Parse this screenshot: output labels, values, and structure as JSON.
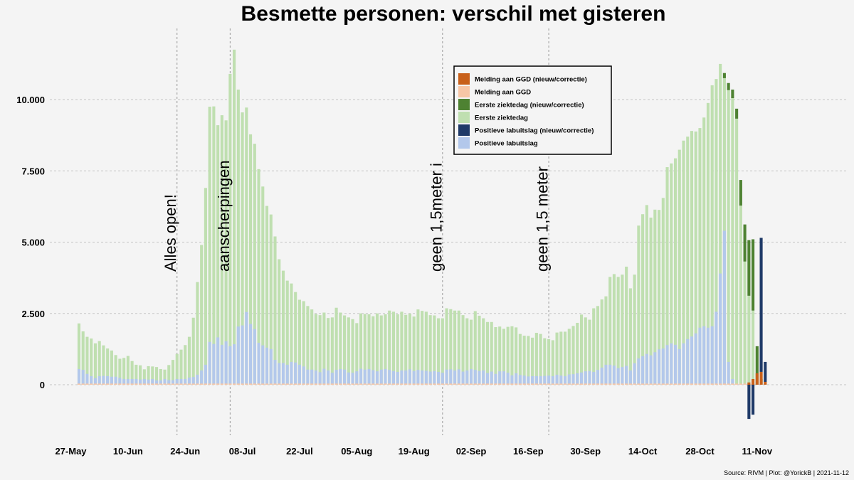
{
  "chart_data": {
    "type": "bar",
    "stacked": true,
    "title": "Besmette personen: verschil met gisteren",
    "source": "Source: RIVM | Plot: @YorickB |  2021-11-12",
    "ylim": [
      -1800,
      12300
    ],
    "y_ticks": [
      0,
      2500,
      5000,
      7500,
      10000
    ],
    "y_tick_labels": [
      "0",
      "2.500",
      "5.000",
      "7.500",
      "10.000"
    ],
    "grid": true,
    "x_ticks": [
      {
        "day": 0,
        "label": "27-May"
      },
      {
        "day": 14,
        "label": "10-Jun"
      },
      {
        "day": 28,
        "label": "24-Jun"
      },
      {
        "day": 42,
        "label": "08-Jul"
      },
      {
        "day": 56,
        "label": "22-Jul"
      },
      {
        "day": 70,
        "label": "05-Aug"
      },
      {
        "day": 84,
        "label": "19-Aug"
      },
      {
        "day": 98,
        "label": "02-Sep"
      },
      {
        "day": 112,
        "label": "16-Sep"
      },
      {
        "day": 126,
        "label": "30-Sep"
      },
      {
        "day": 140,
        "label": "14-Oct"
      },
      {
        "day": 154,
        "label": "28-Oct"
      },
      {
        "day": 168,
        "label": "11-Nov"
      }
    ],
    "annotations": [
      {
        "day": 26,
        "label": "Alles open!"
      },
      {
        "day": 39,
        "label": "aanscherpingen"
      },
      {
        "day": 91,
        "label": "geen 1,5meter i"
      },
      {
        "day": 117,
        "label": "geen 1,5 meter"
      }
    ],
    "legend_position": "top-center",
    "series": [
      {
        "key": "melding_corr",
        "name": "Melding aan GGD (nieuw/correctie)",
        "color": "#c8601a"
      },
      {
        "key": "melding",
        "name": "Melding aan GGD",
        "color": "#f7c6a6"
      },
      {
        "key": "eerste_corr",
        "name": "Eerste ziektedag (nieuw/correctie)",
        "color": "#4e8232"
      },
      {
        "key": "eerste",
        "name": "Eerste ziektedag",
        "color": "#bfdfb0"
      },
      {
        "key": "positief_corr",
        "name": "Positieve labuitslag (nieuw/correctie)",
        "color": "#1f3a68"
      },
      {
        "key": "positief",
        "name": "Positieve labuitslag",
        "color": "#b3c8eb"
      }
    ],
    "start_day": 2,
    "eerste_totals": [
      2150,
      1870,
      1680,
      1620,
      1450,
      1530,
      1380,
      1270,
      1200,
      1040,
      910,
      940,
      1010,
      830,
      700,
      680,
      540,
      650,
      640,
      620,
      550,
      530,
      690,
      870,
      1080,
      1230,
      1390,
      1680,
      2350,
      3600,
      4900,
      6900,
      9750,
      9760,
      9100,
      9450,
      9270,
      10900,
      11750,
      10350,
      9550,
      9720,
      8780,
      8450,
      7560,
      6950,
      6270,
      5970,
      5200,
      4400,
      4000,
      3650,
      3550,
      3250,
      2980,
      2930,
      2760,
      2640,
      2480,
      2440,
      2530,
      2340,
      2360,
      2700,
      2530,
      2430,
      2360,
      2300,
      2160,
      2500,
      2480,
      2470,
      2400,
      2500,
      2430,
      2470,
      2600,
      2560,
      2470,
      2560,
      2450,
      2490,
      2390,
      2640,
      2590,
      2560,
      2440,
      2430,
      2330,
      2330,
      2680,
      2650,
      2600,
      2600,
      2440,
      2330,
      2280,
      2580,
      2420,
      2330,
      2200,
      2200,
      2020,
      2040,
      1960,
      2030,
      2050,
      2010,
      1780,
      1720,
      1710,
      1650,
      1820,
      1780,
      1630,
      1600,
      1560,
      1830,
      1860,
      1860,
      1960,
      2060,
      2170,
      2460,
      2360,
      2280,
      2680,
      2760,
      2990,
      3100,
      3780,
      3880,
      3780,
      3860,
      4140,
      3380,
      3860,
      5580,
      5980,
      6300,
      5860,
      6140,
      6130,
      6550,
      7630,
      7760,
      7940,
      8240,
      8560,
      8700,
      8900,
      8880,
      9000,
      9370,
      9880,
      10500,
      10720,
      11250,
      10750,
      10330,
      10050,
      9330,
      6280,
      4320,
      3120,
      2600
    ],
    "positief_totals": [
      550,
      520,
      380,
      300,
      230,
      300,
      310,
      300,
      280,
      280,
      240,
      200,
      200,
      200,
      200,
      180,
      200,
      180,
      200,
      150,
      150,
      200,
      160,
      160,
      200,
      200,
      200,
      250,
      270,
      350,
      500,
      700,
      1500,
      1430,
      1660,
      1400,
      1520,
      1350,
      1420,
      2040,
      2080,
      2550,
      2130,
      1950,
      1470,
      1380,
      1300,
      1250,
      870,
      760,
      760,
      700,
      800,
      780,
      700,
      640,
      530,
      530,
      500,
      440,
      560,
      500,
      420,
      520,
      550,
      530,
      430,
      420,
      470,
      560,
      530,
      550,
      510,
      470,
      530,
      550,
      520,
      480,
      450,
      500,
      500,
      540,
      480,
      520,
      500,
      490,
      460,
      480,
      450,
      420,
      530,
      540,
      500,
      540,
      460,
      500,
      550,
      520,
      480,
      500,
      410,
      460,
      380,
      470,
      470,
      420,
      330,
      400,
      340,
      320,
      290,
      300,
      300,
      300,
      310,
      320,
      300,
      350,
      320,
      300,
      360,
      370,
      400,
      430,
      470,
      480,
      450,
      520,
      600,
      700,
      700,
      670,
      580,
      620,
      660,
      500,
      750,
      920,
      1000,
      1080,
      1030,
      1140,
      1240,
      1270,
      1390,
      1450,
      1400,
      1250,
      1450,
      1600,
      1690,
      1800,
      2000,
      2050,
      2000,
      2050,
      2560,
      3900,
      5400,
      800,
      200
    ],
    "corrections": [
      {
        "day": 160,
        "eerste_corr": 180
      },
      {
        "day": 161,
        "eerste_corr": 250
      },
      {
        "day": 162,
        "eerste_corr": 300
      },
      {
        "day": 163,
        "eerste_corr": 350
      },
      {
        "day": 164,
        "eerste_corr": 900
      },
      {
        "day": 165,
        "eerste_corr": 1300
      },
      {
        "day": 166,
        "eerste_corr": 1950,
        "positief_corr": -1200,
        "melding_corr": 80
      },
      {
        "day": 167,
        "eerste_corr": 2500,
        "positief_corr": -1050,
        "melding_corr": 200
      },
      {
        "day": 168,
        "eerste_corr": 1350,
        "melding_corr": 400
      },
      {
        "day": 169,
        "eerste_corr": 200,
        "melding_corr": 450,
        "positief_corr": 4700
      },
      {
        "day": 170,
        "positief_corr": 700,
        "melding_corr": 100
      }
    ]
  }
}
